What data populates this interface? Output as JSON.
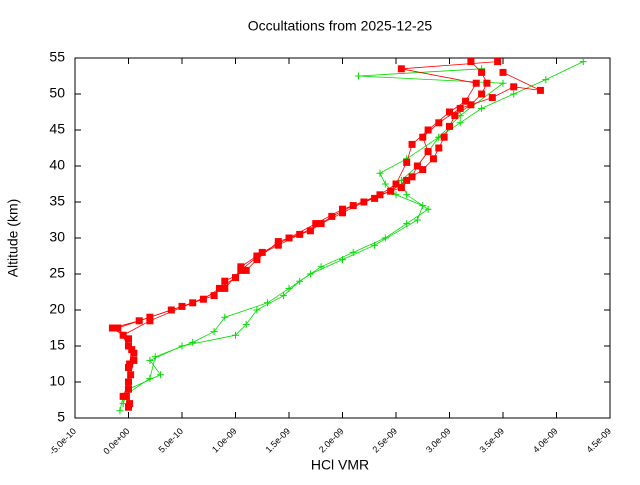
{
  "chart_data": {
    "type": "line",
    "title": "Occultations from 2025-12-25",
    "x_label": "HCl VMR",
    "y_label": "Altitude (km)",
    "xlim": [
      -5e-10,
      4.5e-09
    ],
    "ylim": [
      5,
      55
    ],
    "xticks": [
      {
        "value": -5e-10,
        "label": "-5.0e-10"
      },
      {
        "value": 0,
        "label": "0.0e+00"
      },
      {
        "value": 5e-10,
        "label": "5.0e-10"
      },
      {
        "value": 1e-09,
        "label": "1.0e-09"
      },
      {
        "value": 1.5e-09,
        "label": "1.5e-09"
      },
      {
        "value": 2e-09,
        "label": "2.0e-09"
      },
      {
        "value": 2.5e-09,
        "label": "2.5e-09"
      },
      {
        "value": 3e-09,
        "label": "3.0e-09"
      },
      {
        "value": 3.5e-09,
        "label": "3.5e-09"
      },
      {
        "value": 4e-09,
        "label": "4.0e-09"
      },
      {
        "value": 4.5e-09,
        "label": "4.5e-09"
      }
    ],
    "yticks": [
      5,
      10,
      15,
      20,
      25,
      30,
      35,
      40,
      45,
      50,
      55
    ],
    "series": [
      {
        "color": "#00dd00",
        "marker": "plus",
        "x": [
          -5e-11,
          0,
          3e-10,
          2e-10,
          5e-10,
          1e-09,
          1.1e-09,
          1.2e-09,
          1.45e-09,
          1.6e-09,
          1.8e-09,
          2.1e-09,
          2.4e-09,
          2.6e-09,
          2.8e-09,
          2.6e-09,
          2.55e-09,
          2.7e-09,
          2.8e-09,
          2.9e-09,
          3.1e-09,
          3.3e-09,
          3.6e-09,
          3.9e-09,
          4.25e-09
        ],
        "y": [
          7,
          9,
          11,
          13,
          15,
          16.5,
          18,
          20,
          22,
          24,
          26,
          28,
          30,
          32,
          34,
          36,
          38,
          40,
          42,
          44,
          46,
          48,
          50,
          52,
          54.5
        ]
      },
      {
        "color": "#00dd00",
        "marker": "plus",
        "x": [
          -8e-11,
          -5e-11,
          2e-10,
          2.5e-10,
          6e-10,
          8e-10,
          9e-10,
          1.3e-09,
          1.5e-09,
          1.7e-09,
          2e-09,
          2.3e-09,
          2.7e-09,
          2.75e-09,
          2.5e-09,
          2.4e-09,
          2.35e-09,
          2.6e-09,
          2.9e-09,
          3.1e-09,
          3.5e-09,
          2.15e-09,
          3.3e-09
        ],
        "y": [
          6,
          8,
          10.5,
          13.5,
          15.5,
          17,
          19,
          21,
          23,
          25,
          27,
          29,
          32.5,
          34.5,
          36,
          37.5,
          39,
          41,
          44,
          47,
          51.5,
          52.5,
          53.5
        ]
      },
      {
        "color": "#ff0000",
        "marker": "square",
        "x": [
          0,
          -2e-11,
          0,
          0,
          5e-11,
          0,
          -1.5e-10,
          1e-10,
          4e-10,
          7e-10,
          8.5e-10,
          1e-09,
          1.05e-09,
          1.2e-09,
          1.4e-09,
          1.6e-09,
          1.8e-09,
          2e-09,
          2.2e-09,
          2.45e-09,
          2.6e-09,
          2.75e-09,
          2.85e-09,
          2.9e-09,
          2.95e-09,
          3e-09,
          3.05e-09,
          3.2e-09,
          3.3e-09,
          3.35e-09,
          3.3e-09,
          3.2e-09
        ],
        "y": [
          6.5,
          8,
          10,
          12,
          14,
          16,
          17.5,
          18.5,
          20,
          21.5,
          23,
          24.5,
          26,
          27.5,
          29,
          30.5,
          32,
          33.5,
          35,
          36.5,
          38,
          39.5,
          41,
          42.5,
          44,
          45.5,
          47,
          48.5,
          50,
          51.5,
          53,
          54.5
        ]
      },
      {
        "color": "#ff0000",
        "marker": "square",
        "x": [
          1e-11,
          0,
          2e-11,
          5e-11,
          0,
          -1e-10,
          2e-10,
          5e-10,
          8e-10,
          9e-10,
          1.1e-09,
          1.2e-09,
          1.4e-09,
          1.7e-09,
          1.9e-09,
          2.1e-09,
          2.35e-09,
          2.55e-09,
          2.65e-09,
          2.7e-09,
          2.8e-09,
          2.75e-09,
          2.9e-09,
          3.1e-09,
          3.4e-09,
          3.6e-09,
          3.85e-09,
          3.5e-09
        ],
        "y": [
          7,
          9,
          11,
          13,
          15,
          17.5,
          19,
          20.5,
          22,
          24,
          25.5,
          27,
          29.5,
          31,
          33,
          34.5,
          36,
          37,
          38.5,
          40,
          42,
          44,
          46,
          48,
          49.5,
          51,
          50.5,
          53
        ]
      },
      {
        "color": "#ff0000",
        "marker": "square",
        "x": [
          -5e-11,
          0,
          1e-11,
          3e-11,
          -5e-11,
          2e-10,
          6e-10,
          9e-10,
          1.05e-09,
          1.25e-09,
          1.5e-09,
          1.75e-09,
          2e-09,
          2.3e-09,
          2.5e-09,
          2.6e-09,
          2.65e-09,
          2.8e-09,
          3e-09,
          3.15e-09,
          3.25e-09,
          2.55e-09,
          3.45e-09
        ],
        "y": [
          8,
          10,
          12.5,
          14.5,
          16.5,
          18.5,
          21,
          23,
          25.5,
          28,
          30,
          32,
          34,
          35.5,
          37.5,
          40.5,
          43,
          45,
          47.5,
          49,
          51.5,
          53.5,
          54.5
        ]
      }
    ]
  }
}
